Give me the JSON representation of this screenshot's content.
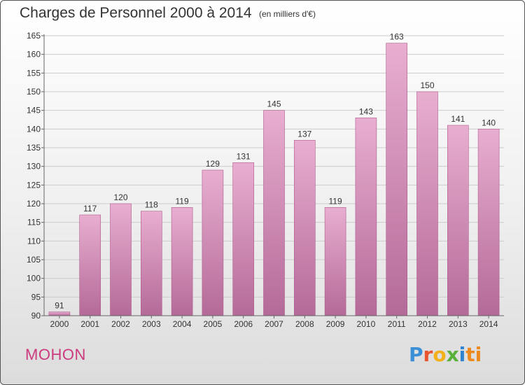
{
  "title": "Charges de Personnel 2000 à 2014",
  "subtitle": "(en milliers d'€)",
  "commune": "MOHON",
  "logo": {
    "text": "Proxiti",
    "letters": [
      "P",
      "r",
      "o",
      "x",
      "i",
      "ti"
    ]
  },
  "colors": {
    "bar_top": "#e8aed0",
    "bar_bottom": "#b46a98",
    "bar_edge": "#b05a8e",
    "grid": "#cccccc",
    "commune": "#cc3b7e"
  },
  "chart_data": {
    "type": "bar",
    "categories": [
      "2000",
      "2001",
      "2002",
      "2003",
      "2004",
      "2005",
      "2006",
      "2007",
      "2008",
      "2009",
      "2010",
      "2011",
      "2012",
      "2013",
      "2014"
    ],
    "values": [
      91,
      117,
      120,
      118,
      119,
      129,
      131,
      145,
      137,
      119,
      143,
      163,
      150,
      141,
      140
    ],
    "ylim": [
      90,
      165
    ],
    "yticks": [
      90,
      95,
      100,
      105,
      110,
      115,
      120,
      125,
      130,
      135,
      140,
      145,
      150,
      155,
      160,
      165
    ],
    "grid": true,
    "data_labels": true
  }
}
